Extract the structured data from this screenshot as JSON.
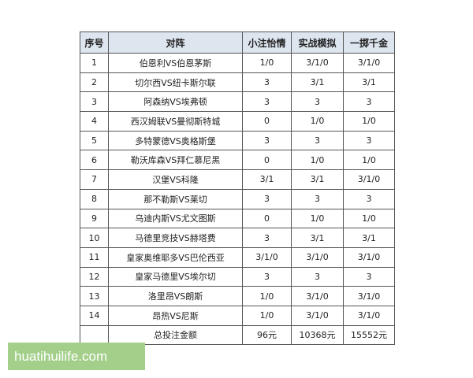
{
  "table": {
    "headers": [
      "序号",
      "对阵",
      "小注怡情",
      "实战模拟",
      "一掷千金"
    ],
    "rows": [
      [
        "1",
        "伯恩利VS伯恩茅斯",
        "1/0",
        "3/1/0",
        "3/1/0"
      ],
      [
        "2",
        "切尔西VS纽卡斯尔联",
        "3",
        "3/1",
        "3/1"
      ],
      [
        "3",
        "阿森纳VS埃弗顿",
        "3",
        "3",
        "3"
      ],
      [
        "4",
        "西汉姆联VS曼彻斯特城",
        "0",
        "1/0",
        "1/0"
      ],
      [
        "5",
        "多特蒙德VS奥格斯堡",
        "3",
        "3",
        "3"
      ],
      [
        "6",
        "勒沃库森VS拜仁慕尼黑",
        "0",
        "1/0",
        "1/0"
      ],
      [
        "7",
        "汉堡VS科隆",
        "3/1",
        "3/1",
        "3/1/0"
      ],
      [
        "8",
        "那不勒斯VS莱切",
        "3",
        "3",
        "3"
      ],
      [
        "9",
        "乌迪内斯VS尤文图斯",
        "0",
        "1/0",
        "1/0"
      ],
      [
        "10",
        "马德里竞技VS赫塔费",
        "3",
        "3/1",
        "3/1"
      ],
      [
        "11",
        "皇家奥维耶多VS巴伦西亚",
        "3/1/0",
        "3/1/0",
        "3/1/0"
      ],
      [
        "12",
        "皇家马德里VS埃尔切",
        "3",
        "3",
        "3"
      ],
      [
        "13",
        "洛里昂VS朗斯",
        "1/0",
        "3/1/0",
        "3/1/0"
      ],
      [
        "14",
        "昂热VS尼斯",
        "1/0",
        "3/1/0",
        "3/1/0"
      ],
      [
        "",
        "总投注金额",
        "96元",
        "10368元",
        "15552元"
      ]
    ]
  },
  "watermark": "huatihuilife.com"
}
